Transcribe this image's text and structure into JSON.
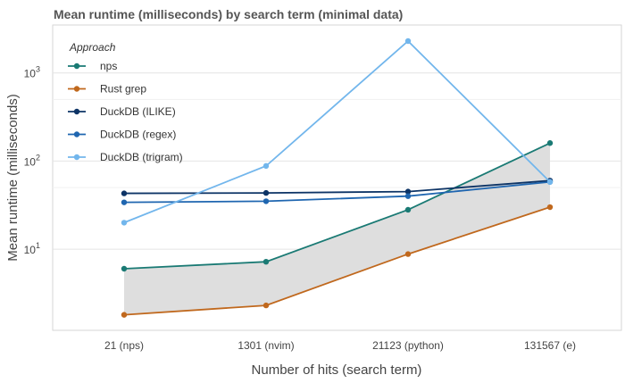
{
  "chart_data": {
    "type": "line",
    "title": "Mean runtime (milliseconds) by search term (minimal data)",
    "xlabel": "Number of hits (search term)",
    "ylabel": "Mean runtime (milliseconds)",
    "y_scale": "log",
    "ylim": [
      1.2,
      3500
    ],
    "y_ticks": [
      {
        "value": 10,
        "base": "10",
        "exp": "1"
      },
      {
        "value": 100,
        "base": "10",
        "exp": "2"
      },
      {
        "value": 1000,
        "base": "10",
        "exp": "3"
      }
    ],
    "categories": [
      "21 (nps)",
      "1301 (nvim)",
      "21123 (python)",
      "131567 (e)"
    ],
    "legend": {
      "title": "Approach",
      "placement": "top-left"
    },
    "series": [
      {
        "name": "nps",
        "color": "#1a7a74",
        "values": [
          6.0,
          7.2,
          28,
          160
        ]
      },
      {
        "name": "Rust grep",
        "color": "#c0681d",
        "values": [
          1.8,
          2.3,
          8.8,
          30
        ]
      },
      {
        "name": "DuckDB (ILIKE)",
        "color": "#0d3466",
        "values": [
          43,
          43.5,
          45,
          60
        ]
      },
      {
        "name": "DuckDB (regex)",
        "color": "#1f66b0",
        "values": [
          34,
          35,
          40,
          58
        ]
      },
      {
        "name": "DuckDB (trigram)",
        "color": "#72b6ec",
        "values": [
          20,
          88,
          2300,
          58
        ]
      }
    ],
    "ribbon": {
      "between": [
        "Rust grep",
        "nps"
      ],
      "color": "#dedede"
    },
    "grid": true
  }
}
